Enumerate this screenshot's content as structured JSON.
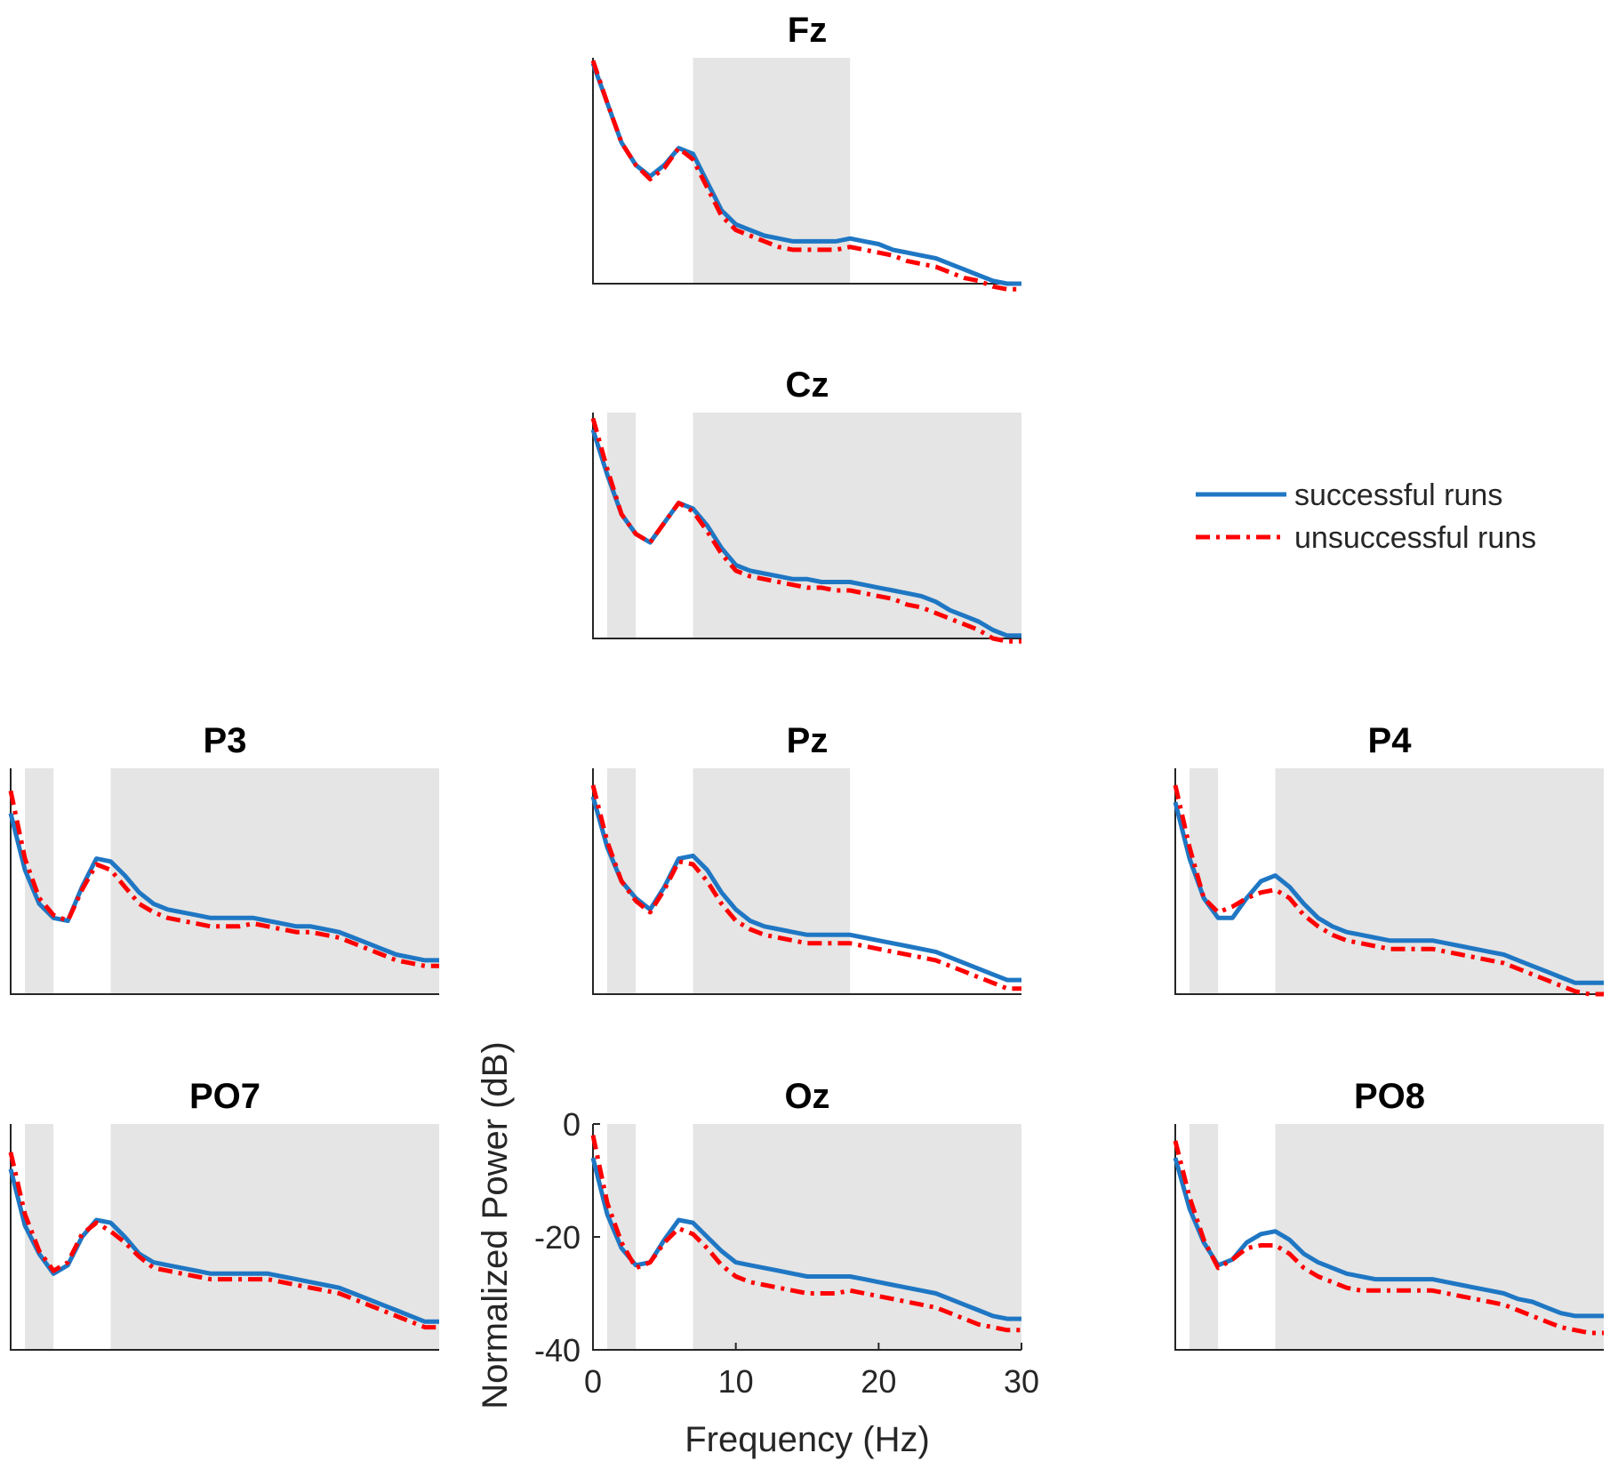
{
  "chart_data": {
    "type": "line",
    "x_label": "Frequency (Hz)",
    "y_label": "Normalized Power (dB)",
    "xlim": [
      0,
      30
    ],
    "ylim": [
      -40,
      0
    ],
    "x_ticks": [
      "0",
      "10",
      "20",
      "30"
    ],
    "y_ticks": [
      "0",
      "-20",
      "-40"
    ],
    "legend": {
      "placement": "right",
      "entries": [
        "successful runs",
        "unsuccessful runs"
      ]
    },
    "series_style": {
      "successful": {
        "color": "#1f77c4",
        "dash": "solid"
      },
      "unsuccessful": {
        "color": "#ff0000",
        "dash": "dash-dot"
      }
    },
    "x": [
      0,
      1,
      2,
      3,
      4,
      5,
      6,
      7,
      8,
      9,
      10,
      11,
      12,
      13,
      14,
      15,
      16,
      17,
      18,
      19,
      20,
      21,
      22,
      23,
      24,
      25,
      26,
      27,
      28,
      29,
      30
    ],
    "panels": [
      {
        "title": "Fz",
        "bands": [
          [
            7,
            18
          ]
        ],
        "successful": [
          -1,
          -8,
          -15,
          -19,
          -21,
          -19,
          -16,
          -17,
          -22,
          -27,
          -29.5,
          -30.5,
          -31.5,
          -32,
          -32.5,
          -32.5,
          -32.5,
          -32.5,
          -32,
          -32.5,
          -33,
          -34,
          -34.5,
          -35,
          -35.5,
          -36.5,
          -37.5,
          -38.5,
          -39.5,
          -40,
          -40
        ],
        "unsuccessful": [
          -0.5,
          -8,
          -15,
          -19,
          -21.5,
          -19.5,
          -16,
          -18,
          -23,
          -28,
          -30.5,
          -31.5,
          -32.5,
          -33.5,
          -34,
          -34,
          -34,
          -34,
          -33.5,
          -34,
          -34.5,
          -35,
          -36,
          -36.5,
          -37,
          -38,
          -39,
          -39.5,
          -40.5,
          -41,
          -41
        ]
      },
      {
        "title": "Cz",
        "bands": [
          [
            1,
            3
          ],
          [
            7,
            30
          ]
        ],
        "successful": [
          -3,
          -11,
          -18,
          -21.5,
          -23,
          -19.5,
          -16,
          -17,
          -20,
          -24,
          -27,
          -28,
          -28.5,
          -29,
          -29.5,
          -29.5,
          -30,
          -30,
          -30,
          -30.5,
          -31,
          -31.5,
          -32,
          -32.5,
          -33.5,
          -35,
          -36,
          -37,
          -38.5,
          -39.5,
          -39.5
        ],
        "unsuccessful": [
          -1,
          -10,
          -18,
          -21.5,
          -23,
          -19.5,
          -16,
          -17.5,
          -21,
          -25,
          -28,
          -29,
          -29.5,
          -30,
          -30.5,
          -31,
          -31,
          -31.5,
          -31.5,
          -32,
          -32.5,
          -33,
          -34,
          -34.5,
          -35.5,
          -36.5,
          -37.5,
          -38.5,
          -40,
          -40.5,
          -40.5
        ]
      },
      {
        "title": "P3",
        "bands": [
          [
            1,
            3
          ],
          [
            7,
            30
          ]
        ],
        "successful": [
          -8,
          -18,
          -24,
          -26.5,
          -27,
          -21,
          -16,
          -16.5,
          -19,
          -22,
          -24,
          -25,
          -25.5,
          -26,
          -26.5,
          -26.5,
          -26.5,
          -26.5,
          -27,
          -27.5,
          -28,
          -28,
          -28.5,
          -29,
          -30,
          -31,
          -32,
          -33,
          -33.5,
          -34,
          -34
        ],
        "unsuccessful": [
          -4,
          -16,
          -23,
          -26,
          -27,
          -21.5,
          -17,
          -18,
          -21,
          -24,
          -25.5,
          -26.5,
          -27,
          -27.5,
          -28,
          -28,
          -28,
          -27.5,
          -28,
          -28.5,
          -29,
          -29,
          -29.5,
          -30,
          -31,
          -32,
          -33,
          -34,
          -34.5,
          -35,
          -35
        ]
      },
      {
        "title": "Pz",
        "bands": [
          [
            1,
            3
          ],
          [
            7,
            18
          ]
        ],
        "successful": [
          -5,
          -14,
          -20,
          -23,
          -25,
          -21,
          -16,
          -15.5,
          -18,
          -22,
          -25,
          -27,
          -28,
          -28.5,
          -29,
          -29.5,
          -29.5,
          -29.5,
          -29.5,
          -30,
          -30.5,
          -31,
          -31.5,
          -32,
          -32.5,
          -33.5,
          -34.5,
          -35.5,
          -36.5,
          -37.5,
          -37.5
        ],
        "unsuccessful": [
          -3,
          -13,
          -20,
          -23.5,
          -25.5,
          -21.5,
          -16.5,
          -17,
          -20,
          -24,
          -27,
          -28.5,
          -29.5,
          -30,
          -30.5,
          -31,
          -31,
          -31,
          -31,
          -31.5,
          -32,
          -32.5,
          -33,
          -33.5,
          -34,
          -35,
          -36,
          -37,
          -38,
          -39,
          -39
        ]
      },
      {
        "title": "P4",
        "bands": [
          [
            1,
            3
          ],
          [
            7,
            30
          ]
        ],
        "successful": [
          -6,
          -16,
          -23,
          -26.5,
          -26.5,
          -23,
          -20,
          -19,
          -21,
          -24,
          -26.5,
          -28,
          -29,
          -29.5,
          -30,
          -30.5,
          -30.5,
          -30.5,
          -30.5,
          -31,
          -31.5,
          -32,
          -32.5,
          -33,
          -34,
          -35,
          -36,
          -37,
          -38,
          -38,
          -38
        ],
        "unsuccessful": [
          -3,
          -14,
          -23,
          -25.5,
          -24.5,
          -23,
          -22,
          -21.5,
          -23,
          -26,
          -28,
          -29.5,
          -30.5,
          -31,
          -31.5,
          -32,
          -32,
          -32,
          -32,
          -32.5,
          -33,
          -33.5,
          -34,
          -34.5,
          -35.5,
          -36.5,
          -37.5,
          -38.5,
          -39.5,
          -40,
          -40
        ]
      },
      {
        "title": "PO7",
        "bands": [
          [
            1,
            3
          ],
          [
            7,
            30
          ]
        ],
        "successful": [
          -8,
          -18,
          -23,
          -26.5,
          -25,
          -20,
          -17,
          -17.5,
          -20,
          -23,
          -24.5,
          -25,
          -25.5,
          -26,
          -26.5,
          -26.5,
          -26.5,
          -26.5,
          -26.5,
          -27,
          -27.5,
          -28,
          -28.5,
          -29,
          -30,
          -31,
          -32,
          -33,
          -34,
          -35,
          -35
        ],
        "unsuccessful": [
          -5,
          -16,
          -22.5,
          -26,
          -24.5,
          -19.5,
          -17.5,
          -19,
          -21,
          -23.5,
          -25.5,
          -26,
          -26.5,
          -27,
          -27.5,
          -27.5,
          -27.5,
          -27.5,
          -27.5,
          -28,
          -28.5,
          -29,
          -29.5,
          -30,
          -31,
          -32,
          -33,
          -34,
          -35,
          -36,
          -36
        ]
      },
      {
        "title": "Oz",
        "bands": [
          [
            1,
            3
          ],
          [
            7,
            30
          ]
        ],
        "successful": [
          -6,
          -16,
          -22,
          -25,
          -24.5,
          -20.5,
          -17,
          -17.5,
          -20,
          -22.5,
          -24.5,
          -25,
          -25.5,
          -26,
          -26.5,
          -27,
          -27,
          -27,
          -27,
          -27.5,
          -28,
          -28.5,
          -29,
          -29.5,
          -30,
          -31,
          -32,
          -33,
          -34,
          -34.5,
          -34.5
        ],
        "unsuccessful": [
          -2,
          -14,
          -21,
          -25.5,
          -24.5,
          -21,
          -18.5,
          -19.5,
          -22,
          -25,
          -27,
          -28,
          -28.5,
          -29,
          -29.5,
          -30,
          -30,
          -30,
          -29.5,
          -30,
          -30.5,
          -31,
          -31.5,
          -32,
          -32.5,
          -33.5,
          -34.5,
          -35.5,
          -36,
          -36.5,
          -36.5
        ]
      },
      {
        "title": "PO8",
        "bands": [
          [
            1,
            3
          ],
          [
            7,
            30
          ]
        ],
        "successful": [
          -6,
          -15,
          -21,
          -25,
          -24,
          -21,
          -19.5,
          -19,
          -20.5,
          -23,
          -24.5,
          -25.5,
          -26.5,
          -27,
          -27.5,
          -27.5,
          -27.5,
          -27.5,
          -27.5,
          -28,
          -28.5,
          -29,
          -29.5,
          -30,
          -31,
          -31.5,
          -32.5,
          -33.5,
          -34,
          -34,
          -34
        ],
        "unsuccessful": [
          -3,
          -13,
          -20.5,
          -25.5,
          -24,
          -22,
          -21.5,
          -21.5,
          -23,
          -25.5,
          -27,
          -28,
          -29,
          -29.5,
          -29.5,
          -29.5,
          -29.5,
          -29.5,
          -29.5,
          -30,
          -30.5,
          -31,
          -31.5,
          -32,
          -33,
          -34,
          -35,
          -36,
          -36.5,
          -37,
          -37
        ]
      }
    ]
  }
}
